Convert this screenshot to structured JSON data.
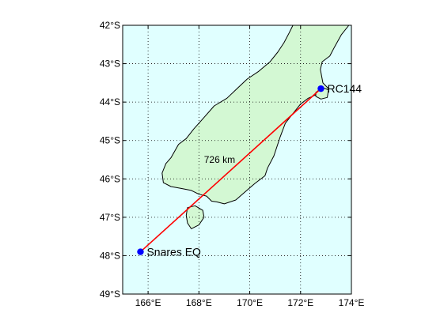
{
  "chart_data": {
    "type": "map",
    "title": "",
    "xlabel": "",
    "ylabel": "",
    "xlim": [
      165,
      174
    ],
    "ylim": [
      -49,
      -42
    ],
    "grid": true,
    "colors": {
      "sea": "#e0ffff",
      "land": "#d3f8d3",
      "coast": "#000000",
      "path": "#ff0000",
      "marker": "#0000ff",
      "grid": "#000000"
    },
    "x_ticks": [
      {
        "value": 166,
        "label": "166°E"
      },
      {
        "value": 168,
        "label": "168°E"
      },
      {
        "value": 170,
        "label": "170°E"
      },
      {
        "value": 172,
        "label": "172°E"
      },
      {
        "value": 174,
        "label": "174°E"
      }
    ],
    "y_ticks": [
      {
        "value": -42,
        "label": "42°S"
      },
      {
        "value": -43,
        "label": "43°S"
      },
      {
        "value": -44,
        "label": "44°S"
      },
      {
        "value": -45,
        "label": "45°S"
      },
      {
        "value": -46,
        "label": "46°S"
      },
      {
        "value": -47,
        "label": "47°S"
      },
      {
        "value": -48,
        "label": "48°S"
      },
      {
        "value": -49,
        "label": "49°S"
      }
    ],
    "points": [
      {
        "name": "RC144",
        "lon": 172.8,
        "lat": -43.65
      },
      {
        "name": "Snares EQ",
        "lon": 165.7,
        "lat": -47.9
      }
    ],
    "path": {
      "from": "Snares EQ",
      "to": "RC144",
      "distance_label": "726 km",
      "label_lon": 168.2,
      "label_lat": -45.5
    },
    "land_polygons": [
      {
        "name": "south-island",
        "coords": [
          [
            173.2,
            -42.0
          ],
          [
            173.8,
            -42.0
          ],
          [
            173.9,
            -42.0
          ],
          [
            173.6,
            -42.25
          ],
          [
            173.35,
            -42.55
          ],
          [
            173.15,
            -42.8
          ],
          [
            172.85,
            -42.95
          ],
          [
            172.78,
            -43.15
          ],
          [
            172.88,
            -43.5
          ],
          [
            173.1,
            -43.65
          ],
          [
            173.05,
            -43.82
          ],
          [
            172.7,
            -43.78
          ],
          [
            172.3,
            -43.9
          ],
          [
            172.0,
            -44.05
          ],
          [
            171.7,
            -44.3
          ],
          [
            171.4,
            -44.55
          ],
          [
            171.2,
            -44.9
          ],
          [
            171.1,
            -45.1
          ],
          [
            170.95,
            -45.4
          ],
          [
            170.7,
            -45.72
          ],
          [
            170.6,
            -45.92
          ],
          [
            170.2,
            -46.12
          ],
          [
            169.8,
            -46.35
          ],
          [
            169.45,
            -46.55
          ],
          [
            169.0,
            -46.65
          ],
          [
            168.7,
            -46.6
          ],
          [
            168.5,
            -46.58
          ],
          [
            168.3,
            -46.45
          ],
          [
            168.0,
            -46.4
          ],
          [
            167.7,
            -46.3
          ],
          [
            167.3,
            -46.25
          ],
          [
            166.9,
            -46.2
          ],
          [
            166.6,
            -46.1
          ],
          [
            166.55,
            -45.85
          ],
          [
            166.7,
            -45.6
          ],
          [
            166.9,
            -45.45
          ],
          [
            167.2,
            -45.1
          ],
          [
            167.5,
            -44.95
          ],
          [
            167.8,
            -44.7
          ],
          [
            168.2,
            -44.4
          ],
          [
            168.6,
            -44.1
          ],
          [
            169.1,
            -43.9
          ],
          [
            169.5,
            -43.65
          ],
          [
            169.9,
            -43.4
          ],
          [
            170.35,
            -43.2
          ],
          [
            170.8,
            -42.95
          ],
          [
            171.1,
            -42.7
          ],
          [
            171.35,
            -42.45
          ],
          [
            171.55,
            -42.2
          ],
          [
            171.7,
            -42.0
          ]
        ]
      },
      {
        "name": "banks-peninsula",
        "coords": [
          [
            172.6,
            -43.75
          ],
          [
            172.85,
            -43.62
          ],
          [
            173.1,
            -43.68
          ],
          [
            173.05,
            -43.88
          ],
          [
            172.8,
            -43.92
          ],
          [
            172.6,
            -43.85
          ]
        ]
      },
      {
        "name": "stewart-island",
        "coords": [
          [
            167.55,
            -46.75
          ],
          [
            167.85,
            -46.7
          ],
          [
            168.15,
            -46.82
          ],
          [
            168.2,
            -47.0
          ],
          [
            168.0,
            -47.2
          ],
          [
            167.7,
            -47.3
          ],
          [
            167.55,
            -47.15
          ],
          [
            167.5,
            -46.95
          ]
        ]
      }
    ]
  }
}
